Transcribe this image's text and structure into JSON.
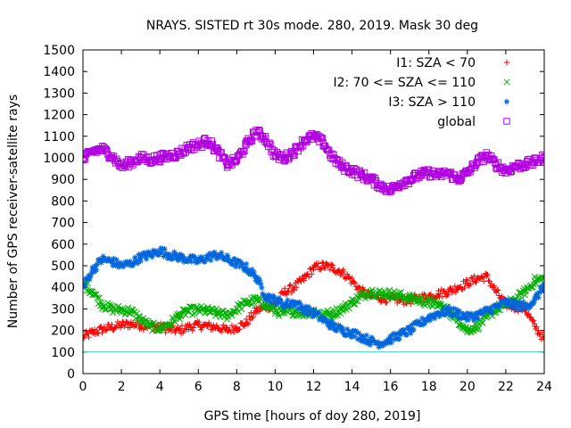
{
  "chart_data": {
    "type": "scatter",
    "title": "NRAYS. SISTED rt 30s mode. 280, 2019. Mask 30 deg",
    "xlabel": "GPS time [hours of doy 280, 2019]",
    "ylabel": "Number of GPS receiver-satellite rays",
    "xlim": [
      0,
      24
    ],
    "ylim": [
      0,
      1500
    ],
    "xticks": [
      0,
      2,
      4,
      6,
      8,
      10,
      12,
      14,
      16,
      18,
      20,
      22,
      24
    ],
    "yticks": [
      0,
      100,
      200,
      300,
      400,
      500,
      600,
      700,
      800,
      900,
      1000,
      1100,
      1200,
      1300,
      1400,
      1500
    ],
    "reference_line": {
      "y": 100,
      "color": "#33cccc"
    },
    "legend_position": "top-right",
    "series": [
      {
        "name": "I1: SZA < 70",
        "marker": "+",
        "color": "#ff0000",
        "x": [
          0,
          0.5,
          1,
          1.5,
          2,
          2.5,
          3,
          3.5,
          4,
          4.5,
          5,
          5.5,
          6,
          6.5,
          7,
          7.5,
          8,
          8.5,
          9,
          9.5,
          10,
          10.5,
          11,
          11.5,
          12,
          12.5,
          13,
          13.5,
          14,
          14.5,
          15,
          15.5,
          16,
          16.5,
          17,
          17.5,
          18,
          18.5,
          19,
          19.5,
          20,
          20.5,
          21,
          21.5,
          22,
          22.5,
          23,
          23.5,
          24
        ],
        "values": [
          170,
          190,
          205,
          215,
          225,
          230,
          225,
          220,
          215,
          205,
          200,
          215,
          225,
          220,
          215,
          200,
          215,
          235,
          290,
          310,
          320,
          380,
          400,
          440,
          490,
          500,
          490,
          470,
          430,
          380,
          360,
          350,
          345,
          340,
          340,
          350,
          360,
          370,
          380,
          400,
          420,
          440,
          450,
          380,
          320,
          310,
          300,
          220,
          160
        ]
      },
      {
        "name": "I2: 70 <= SZA <= 110",
        "marker": "x",
        "color": "#00b000",
        "x": [
          0,
          0.5,
          1,
          1.5,
          2,
          2.5,
          3,
          3.5,
          4,
          4.5,
          5,
          5.5,
          6,
          6.5,
          7,
          7.5,
          8,
          8.5,
          9,
          9.5,
          10,
          10.5,
          11,
          11.5,
          12,
          12.5,
          13,
          13.5,
          14,
          14.5,
          15,
          15.5,
          16,
          16.5,
          17,
          17.5,
          18,
          18.5,
          19,
          19.5,
          20,
          20.5,
          21,
          21.5,
          22,
          22.5,
          23,
          23.5,
          24
        ],
        "values": [
          420,
          380,
          320,
          300,
          295,
          290,
          250,
          220,
          210,
          230,
          270,
          290,
          295,
          290,
          280,
          270,
          300,
          330,
          340,
          320,
          290,
          280,
          290,
          280,
          290,
          270,
          280,
          300,
          330,
          360,
          380,
          370,
          370,
          360,
          350,
          340,
          330,
          320,
          290,
          250,
          200,
          220,
          260,
          300,
          320,
          340,
          380,
          430,
          440
        ]
      },
      {
        "name": "I3: SZA > 110",
        "marker": "*",
        "color": "#0066dd",
        "x": [
          0,
          0.5,
          1,
          1.5,
          2,
          2.5,
          3,
          3.5,
          4,
          4.5,
          5,
          5.5,
          6,
          6.5,
          7,
          7.5,
          8,
          8.5,
          9,
          9.5,
          10,
          10.5,
          11,
          11.5,
          12,
          12.5,
          13,
          13.5,
          14,
          14.5,
          15,
          15.5,
          16,
          16.5,
          17,
          17.5,
          18,
          18.5,
          19,
          19.5,
          20,
          20.5,
          21,
          21.5,
          22,
          22.5,
          23,
          23.5,
          24
        ],
        "values": [
          400,
          480,
          530,
          520,
          500,
          510,
          540,
          550,
          570,
          550,
          540,
          530,
          520,
          540,
          550,
          530,
          510,
          490,
          450,
          360,
          340,
          320,
          330,
          300,
          280,
          250,
          220,
          200,
          190,
          170,
          150,
          140,
          160,
          180,
          200,
          230,
          260,
          280,
          290,
          280,
          260,
          270,
          290,
          310,
          330,
          320,
          310,
          340,
          410
        ]
      },
      {
        "name": "global",
        "marker": "square",
        "color": "#b000e0",
        "x": [
          0,
          0.5,
          1,
          1.5,
          2,
          2.5,
          3,
          3.5,
          4,
          4.5,
          5,
          5.5,
          6,
          6.5,
          7,
          7.5,
          8,
          8.5,
          9,
          9.5,
          10,
          10.5,
          11,
          11.5,
          12,
          12.5,
          13,
          13.5,
          14,
          14.5,
          15,
          15.5,
          16,
          16.5,
          17,
          17.5,
          18,
          18.5,
          19,
          19.5,
          20,
          20.5,
          21,
          21.5,
          22,
          22.5,
          23,
          23.5,
          24
        ],
        "values": [
          990,
          1030,
          1040,
          1010,
          960,
          980,
          1000,
          990,
          1000,
          1010,
          1020,
          1050,
          1060,
          1080,
          1030,
          970,
          990,
          1060,
          1120,
          1090,
          1010,
          1000,
          1030,
          1080,
          1100,
          1070,
          1000,
          960,
          940,
          920,
          900,
          870,
          850,
          880,
          900,
          920,
          930,
          920,
          930,
          900,
          930,
          980,
          1010,
          970,
          940,
          960,
          970,
          980,
          1000
        ]
      }
    ]
  }
}
